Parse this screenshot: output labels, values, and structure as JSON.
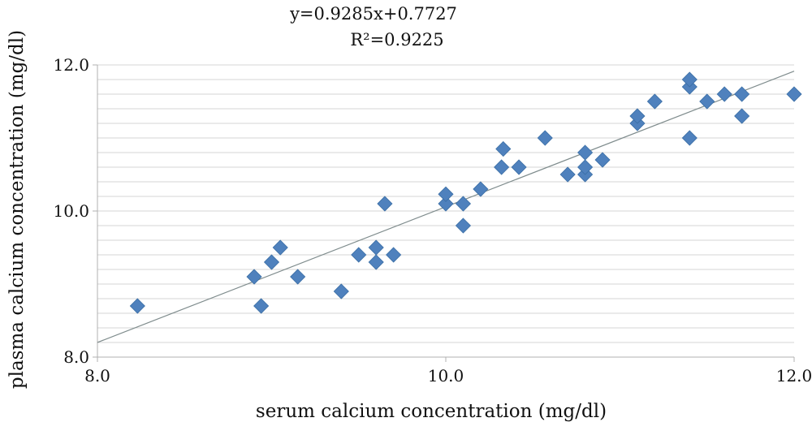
{
  "chart_data": {
    "type": "scatter",
    "xlabel": "serum calcium concentration (mg/dl)",
    "ylabel": "plasma calcium concentration (mg/dl)",
    "xlim": [
      8.0,
      12.0
    ],
    "ylim": [
      8.0,
      12.0
    ],
    "x_ticks": [
      "8.0",
      "10.0",
      "12.0"
    ],
    "y_ticks": [
      "8.0",
      "10.0",
      "12.0"
    ],
    "y_gridlines": [
      8.2,
      8.4,
      8.6,
      8.8,
      9.0,
      9.2,
      9.4,
      9.6,
      9.8,
      10.0,
      10.2,
      10.4,
      10.6,
      10.8,
      11.0,
      11.2,
      11.4,
      11.6,
      11.8,
      12.0
    ],
    "grid": true,
    "marker": "diamond",
    "marker_color": "#4f81bd",
    "trendline_color": "#7f8c8d",
    "equation": "y=0.9285x+0.7727",
    "r_squared": "R²=0.9225",
    "trendline": {
      "slope": 0.9285,
      "intercept": 0.7727
    },
    "points": [
      {
        "x": 8.23,
        "y": 8.7
      },
      {
        "x": 8.9,
        "y": 9.1
      },
      {
        "x": 8.94,
        "y": 8.7
      },
      {
        "x": 9.0,
        "y": 9.3
      },
      {
        "x": 9.05,
        "y": 9.5
      },
      {
        "x": 9.15,
        "y": 9.1
      },
      {
        "x": 9.4,
        "y": 8.9
      },
      {
        "x": 9.5,
        "y": 9.4
      },
      {
        "x": 9.6,
        "y": 9.3
      },
      {
        "x": 9.6,
        "y": 9.5
      },
      {
        "x": 9.65,
        "y": 10.1
      },
      {
        "x": 9.7,
        "y": 9.4
      },
      {
        "x": 10.0,
        "y": 10.1
      },
      {
        "x": 10.0,
        "y": 10.23
      },
      {
        "x": 10.1,
        "y": 10.1
      },
      {
        "x": 10.1,
        "y": 9.8
      },
      {
        "x": 10.2,
        "y": 10.3
      },
      {
        "x": 10.32,
        "y": 10.6
      },
      {
        "x": 10.33,
        "y": 10.85
      },
      {
        "x": 10.42,
        "y": 10.6
      },
      {
        "x": 10.57,
        "y": 11.0
      },
      {
        "x": 10.7,
        "y": 10.5
      },
      {
        "x": 10.8,
        "y": 10.5
      },
      {
        "x": 10.8,
        "y": 10.6
      },
      {
        "x": 10.8,
        "y": 10.8
      },
      {
        "x": 10.9,
        "y": 10.7
      },
      {
        "x": 11.1,
        "y": 11.2
      },
      {
        "x": 11.1,
        "y": 11.3
      },
      {
        "x": 11.2,
        "y": 11.5
      },
      {
        "x": 11.4,
        "y": 11.7
      },
      {
        "x": 11.4,
        "y": 11.8
      },
      {
        "x": 11.4,
        "y": 11.0
      },
      {
        "x": 11.5,
        "y": 11.5
      },
      {
        "x": 11.6,
        "y": 11.6
      },
      {
        "x": 11.7,
        "y": 11.3
      },
      {
        "x": 11.7,
        "y": 11.6
      },
      {
        "x": 12.0,
        "y": 11.6
      }
    ]
  }
}
